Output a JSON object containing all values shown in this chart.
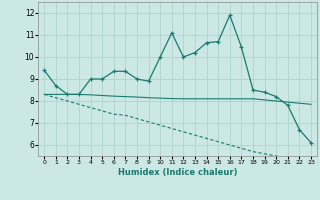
{
  "title": "",
  "xlabel": "Humidex (Indice chaleur)",
  "background_color": "#cce8e5",
  "grid_color": "#aacfcc",
  "line_color": "#1a7a6e",
  "x_data": [
    0,
    1,
    2,
    3,
    4,
    5,
    6,
    7,
    8,
    9,
    10,
    11,
    12,
    13,
    14,
    15,
    16,
    17,
    18,
    19,
    20,
    21,
    22,
    23
  ],
  "y_main": [
    9.4,
    8.7,
    8.3,
    8.3,
    9.0,
    9.0,
    9.35,
    9.35,
    9.0,
    8.9,
    10.0,
    11.1,
    10.0,
    10.2,
    10.65,
    10.7,
    11.9,
    10.45,
    8.5,
    8.4,
    8.2,
    7.8,
    6.7,
    6.1
  ],
  "y_line1": [
    8.3,
    8.3,
    8.3,
    8.3,
    8.28,
    8.25,
    8.22,
    8.2,
    8.18,
    8.15,
    8.13,
    8.11,
    8.1,
    8.1,
    8.1,
    8.1,
    8.1,
    8.1,
    8.1,
    8.05,
    8.0,
    7.95,
    7.9,
    7.85
  ],
  "y_line2": [
    8.3,
    8.15,
    8.0,
    7.85,
    7.7,
    7.55,
    7.4,
    7.35,
    7.2,
    7.05,
    6.9,
    6.75,
    6.6,
    6.45,
    6.3,
    6.15,
    6.0,
    5.85,
    5.7,
    5.6,
    5.5,
    5.4,
    5.3,
    5.2
  ],
  "ylim": [
    5.5,
    12.5
  ],
  "xlim": [
    -0.5,
    23.5
  ],
  "yticks": [
    6,
    7,
    8,
    9,
    10,
    11,
    12
  ],
  "xticks": [
    0,
    1,
    2,
    3,
    4,
    5,
    6,
    7,
    8,
    9,
    10,
    11,
    12,
    13,
    14,
    15,
    16,
    17,
    18,
    19,
    20,
    21,
    22,
    23
  ]
}
